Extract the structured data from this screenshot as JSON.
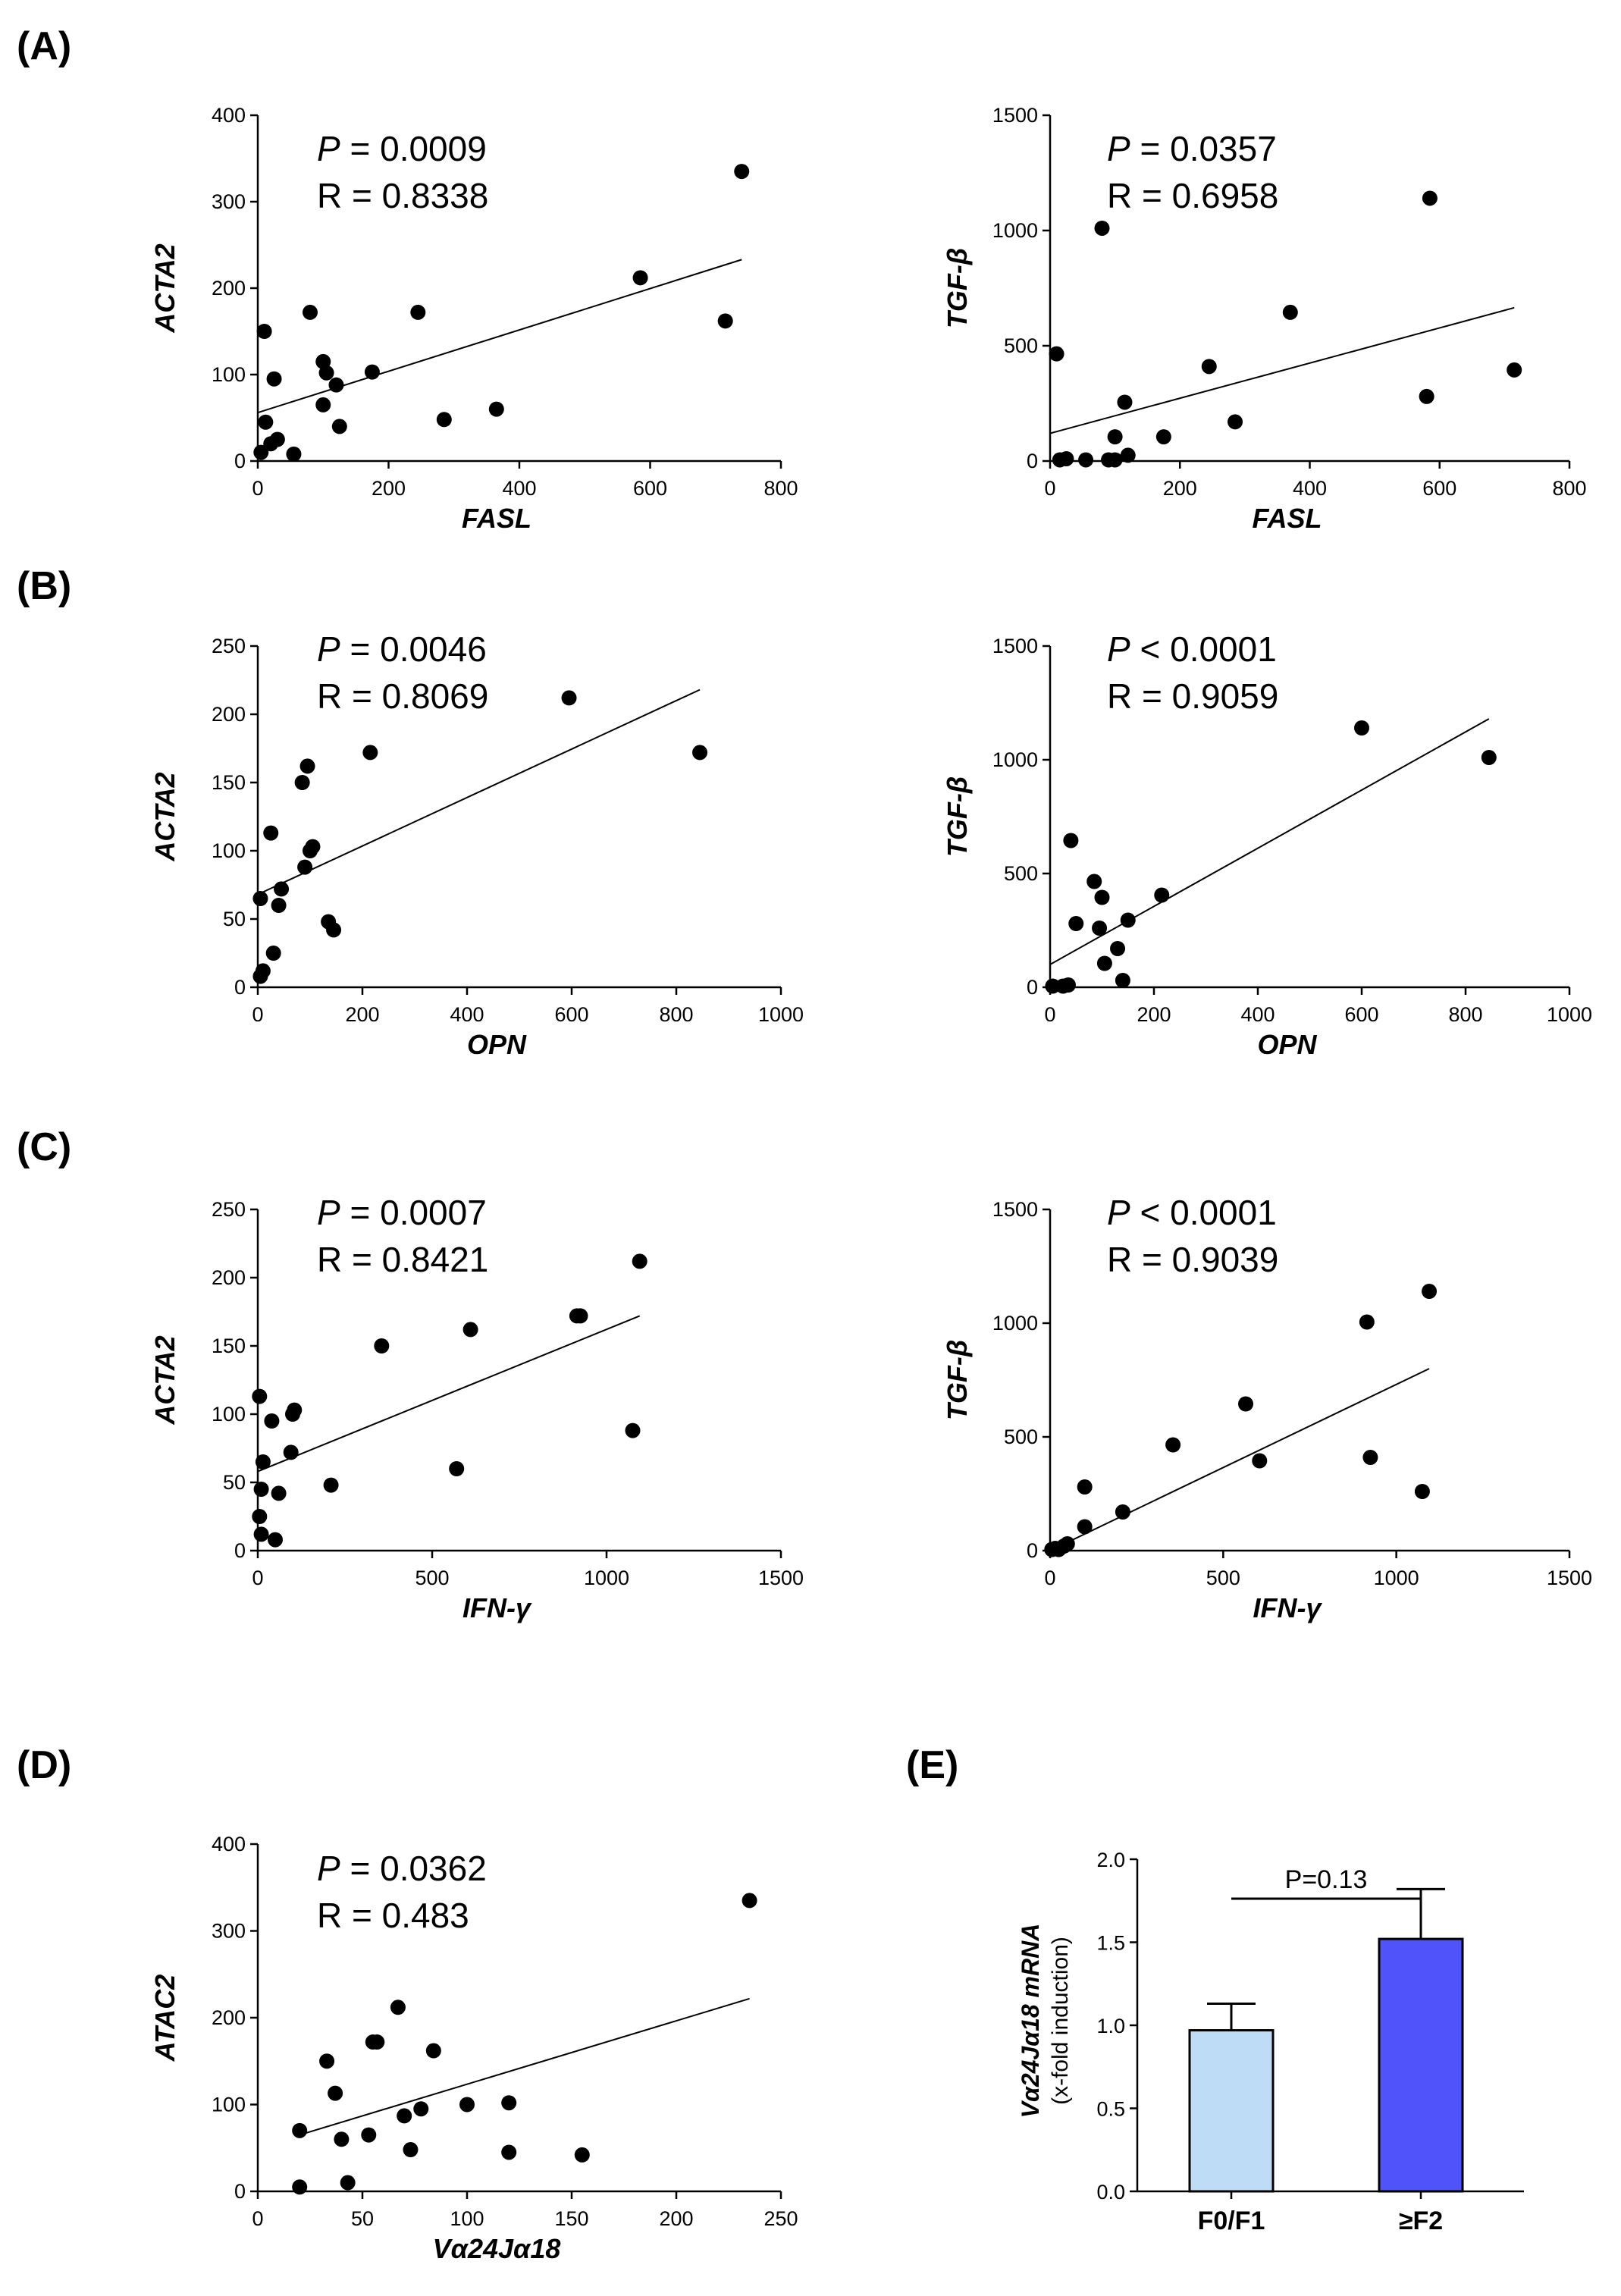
{
  "chart_data": [
    {
      "id": "A1",
      "type": "scatter",
      "panel_label": "(A)",
      "xlabel": "FASL",
      "ylabel": "ACTA2",
      "xlim": [
        0,
        800
      ],
      "ylim": [
        0,
        400
      ],
      "xticks": [
        0,
        200,
        400,
        600,
        800
      ],
      "yticks": [
        0,
        100,
        200,
        300,
        400
      ],
      "stat_p_symbol": "P",
      "stat_p_rest": " = 0.0009",
      "stat_r": "R = 0.8338",
      "points": [
        [
          5,
          10
        ],
        [
          10,
          150
        ],
        [
          12,
          45
        ],
        [
          20,
          20
        ],
        [
          25,
          95
        ],
        [
          30,
          25
        ],
        [
          55,
          8
        ],
        [
          80,
          172
        ],
        [
          100,
          115
        ],
        [
          100,
          65
        ],
        [
          105,
          102
        ],
        [
          120,
          88
        ],
        [
          125,
          40
        ],
        [
          175,
          103
        ],
        [
          245,
          172
        ],
        [
          285,
          48
        ],
        [
          365,
          60
        ],
        [
          585,
          212
        ],
        [
          715,
          162
        ],
        [
          740,
          335
        ]
      ],
      "fit": [
        [
          0,
          56
        ],
        [
          740,
          233
        ]
      ]
    },
    {
      "id": "A2",
      "type": "scatter",
      "panel_label": "",
      "xlabel": "FASL",
      "ylabel": "TGF-β",
      "xlim": [
        0,
        800
      ],
      "ylim": [
        0,
        1500
      ],
      "xticks": [
        0,
        200,
        400,
        600,
        800
      ],
      "yticks": [
        0,
        500,
        1000,
        1500
      ],
      "stat_p_symbol": "P",
      "stat_p_rest": " = 0.0357",
      "stat_r": "R = 0.6958",
      "points": [
        [
          10,
          465
        ],
        [
          15,
          5
        ],
        [
          25,
          10
        ],
        [
          55,
          5
        ],
        [
          80,
          1010
        ],
        [
          90,
          5
        ],
        [
          100,
          5
        ],
        [
          100,
          105
        ],
        [
          115,
          255
        ],
        [
          120,
          25
        ],
        [
          175,
          105
        ],
        [
          245,
          410
        ],
        [
          285,
          170
        ],
        [
          370,
          645
        ],
        [
          580,
          280
        ],
        [
          585,
          1140
        ],
        [
          715,
          395
        ]
      ],
      "fit": [
        [
          0,
          120
        ],
        [
          715,
          665
        ]
      ]
    },
    {
      "id": "B1",
      "type": "scatter",
      "panel_label": "(B)",
      "xlabel": "OPN",
      "ylabel": "ACTA2",
      "xlim": [
        0,
        1000
      ],
      "ylim": [
        0,
        250
      ],
      "xticks": [
        0,
        200,
        400,
        600,
        800,
        1000
      ],
      "yticks": [
        0,
        50,
        100,
        150,
        200,
        250
      ],
      "stat_p_symbol": "P",
      "stat_p_rest": " = 0.0046",
      "stat_r": "R = 0.8069",
      "points": [
        [
          5,
          65
        ],
        [
          5,
          8
        ],
        [
          10,
          12
        ],
        [
          25,
          113
        ],
        [
          30,
          25
        ],
        [
          40,
          60
        ],
        [
          45,
          72
        ],
        [
          85,
          150
        ],
        [
          90,
          88
        ],
        [
          95,
          162
        ],
        [
          100,
          100
        ],
        [
          105,
          103
        ],
        [
          135,
          48
        ],
        [
          145,
          42
        ],
        [
          215,
          172
        ],
        [
          595,
          212
        ],
        [
          845,
          172
        ]
      ],
      "fit": [
        [
          0,
          68
        ],
        [
          845,
          218
        ]
      ]
    },
    {
      "id": "B2",
      "type": "scatter",
      "panel_label": "",
      "xlabel": "OPN",
      "ylabel": "TGF-β",
      "xlim": [
        0,
        1000
      ],
      "ylim": [
        0,
        1500
      ],
      "xticks": [
        0,
        200,
        400,
        600,
        800,
        1000
      ],
      "yticks": [
        0,
        500,
        1000,
        1500
      ],
      "stat_p_symbol": "P",
      "stat_p_rest": " < 0.0001",
      "stat_r": "R = 0.9059",
      "points": [
        [
          5,
          5
        ],
        [
          25,
          5
        ],
        [
          35,
          10
        ],
        [
          40,
          645
        ],
        [
          50,
          280
        ],
        [
          85,
          465
        ],
        [
          95,
          260
        ],
        [
          100,
          395
        ],
        [
          105,
          105
        ],
        [
          130,
          170
        ],
        [
          140,
          30
        ],
        [
          150,
          295
        ],
        [
          215,
          405
        ],
        [
          600,
          1140
        ],
        [
          845,
          1010
        ]
      ],
      "fit": [
        [
          0,
          100
        ],
        [
          845,
          1180
        ]
      ]
    },
    {
      "id": "C1",
      "type": "scatter",
      "panel_label": "(C)",
      "xlabel": "IFN-γ",
      "ylabel": "ACTA2",
      "xlim": [
        0,
        1500
      ],
      "ylim": [
        0,
        250
      ],
      "xticks": [
        0,
        500,
        1000,
        1500
      ],
      "yticks": [
        0,
        50,
        100,
        150,
        200,
        250
      ],
      "stat_p_symbol": "P",
      "stat_p_rest": " = 0.0007",
      "stat_r": "R = 0.8421",
      "points": [
        [
          5,
          113
        ],
        [
          5,
          25
        ],
        [
          10,
          12
        ],
        [
          10,
          45
        ],
        [
          15,
          65
        ],
        [
          40,
          95
        ],
        [
          50,
          8
        ],
        [
          60,
          42
        ],
        [
          95,
          72
        ],
        [
          100,
          100
        ],
        [
          105,
          103
        ],
        [
          210,
          48
        ],
        [
          355,
          150
        ],
        [
          570,
          60
        ],
        [
          610,
          162
        ],
        [
          915,
          172
        ],
        [
          925,
          172
        ],
        [
          1075,
          88
        ],
        [
          1095,
          212
        ]
      ],
      "fit": [
        [
          0,
          58
        ],
        [
          1095,
          172
        ]
      ]
    },
    {
      "id": "C2",
      "type": "scatter",
      "panel_label": "",
      "xlabel": "IFN-γ",
      "ylabel": "TGF-β",
      "xlim": [
        0,
        1500
      ],
      "ylim": [
        0,
        1500
      ],
      "xticks": [
        0,
        500,
        1000,
        1500
      ],
      "yticks": [
        0,
        500,
        1000,
        1500
      ],
      "stat_p_symbol": "P",
      "stat_p_rest": " < 0.0001",
      "stat_r": "R = 0.9039",
      "points": [
        [
          5,
          5
        ],
        [
          15,
          10
        ],
        [
          25,
          5
        ],
        [
          40,
          20
        ],
        [
          50,
          30
        ],
        [
          100,
          280
        ],
        [
          100,
          105
        ],
        [
          210,
          170
        ],
        [
          355,
          465
        ],
        [
          565,
          645
        ],
        [
          605,
          395
        ],
        [
          915,
          1005
        ],
        [
          925,
          410
        ],
        [
          1075,
          260
        ],
        [
          1095,
          1140
        ]
      ],
      "fit": [
        [
          0,
          0
        ],
        [
          1095,
          800
        ]
      ]
    },
    {
      "id": "D1",
      "type": "scatter",
      "panel_label": "(D)",
      "xlabel": "Vα24Jα18",
      "ylabel": "ATAC2",
      "xlim": [
        0,
        250
      ],
      "ylim": [
        0,
        400
      ],
      "xticks": [
        0,
        50,
        100,
        150,
        200,
        250
      ],
      "yticks": [
        0,
        100,
        200,
        300,
        400
      ],
      "stat_p_symbol": "P",
      "stat_p_rest": " = 0.0362",
      "stat_r": "R = 0.483",
      "points": [
        [
          20,
          70
        ],
        [
          20,
          5
        ],
        [
          33,
          150
        ],
        [
          37,
          113
        ],
        [
          40,
          60
        ],
        [
          43,
          10
        ],
        [
          53,
          65
        ],
        [
          55,
          172
        ],
        [
          57,
          172
        ],
        [
          67,
          212
        ],
        [
          70,
          87
        ],
        [
          73,
          48
        ],
        [
          78,
          95
        ],
        [
          84,
          162
        ],
        [
          100,
          100
        ],
        [
          120,
          102
        ],
        [
          120,
          45
        ],
        [
          155,
          42
        ],
        [
          235,
          335
        ]
      ],
      "fit": [
        [
          20,
          65
        ],
        [
          235,
          222
        ]
      ]
    },
    {
      "id": "E1",
      "type": "bar",
      "panel_label": "(E)",
      "categories": [
        "F0/F1",
        "≥F2"
      ],
      "values": [
        0.97,
        1.52
      ],
      "errors": [
        0.16,
        0.3
      ],
      "colors": [
        "#bedcf5",
        "#5052fa"
      ],
      "ylabel_bold": "Vα24Jα18 mRNA",
      "ylabel_sub": "(x-fold induction)",
      "ylim": [
        0,
        2.0
      ],
      "yticks": [
        "0.0",
        "0.5",
        "1.0",
        "1.5",
        "2.0"
      ],
      "significance": "P=0.13"
    }
  ]
}
